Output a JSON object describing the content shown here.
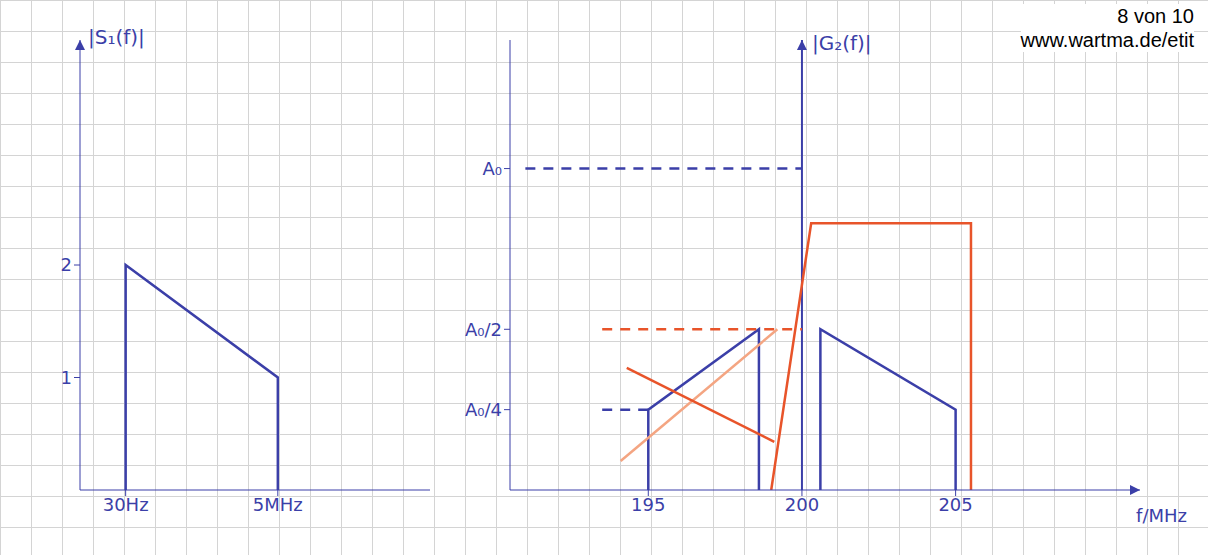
{
  "page_header": [
    "8 von 10",
    "www.wartma.de/etit"
  ],
  "chart_data": [
    {
      "type": "line",
      "y_label": "|S₁(f)|",
      "xlim": [
        -1.5,
        10
      ],
      "xticks": [
        {
          "value": 3e-05,
          "label": "30Hz"
        },
        {
          "value": 5,
          "label": "5MHz"
        }
      ],
      "ylim": [
        0,
        4
      ],
      "yticks": [
        1,
        2
      ],
      "series": [
        {
          "color": "#3b3fa8",
          "line_style": "solid",
          "x": [
            3e-05,
            3e-05,
            5,
            5
          ],
          "values": [
            0,
            2,
            1,
            0
          ]
        }
      ]
    },
    {
      "type": "line",
      "y_label": "|G₂(f)|",
      "x_label": "f/MHz",
      "y_axis_at": 200,
      "xlim": [
        190.5,
        211
      ],
      "xticks": [
        195,
        200,
        205
      ],
      "ylim": [
        0,
        1.4
      ],
      "yticks": [
        {
          "value": 0.25,
          "label": "A₀/4"
        },
        {
          "value": 0.5,
          "label": "A₀/2"
        },
        {
          "value": 1,
          "label": "A₀"
        }
      ],
      "series": [
        {
          "color": "#3b3fa8",
          "line_style": "solid",
          "x": [
            195,
            195,
            198.6,
            198.6
          ],
          "values": [
            0,
            0.25,
            0.5,
            0
          ]
        },
        {
          "color": "#3b3fa8",
          "line_style": "solid",
          "x": [
            200.6,
            200.6,
            205,
            205
          ],
          "values": [
            0,
            0.5,
            0.25,
            0
          ]
        },
        {
          "color": "#e8542a",
          "line_style": "solid",
          "x": [
            199,
            200.3,
            205.5,
            205.5
          ],
          "values": [
            0,
            0.83,
            0.83,
            0
          ]
        },
        {
          "color": "#3b3fa8",
          "line_style": "dashed",
          "x": [
            191,
            200
          ],
          "values": [
            1,
            1
          ]
        },
        {
          "color": "#e8542a",
          "line_style": "dashed",
          "x": [
            193.5,
            200
          ],
          "values": [
            0.5,
            0.5
          ]
        },
        {
          "color": "#3b3fa8",
          "line_style": "dashed",
          "x": [
            193.5,
            195
          ],
          "values": [
            0.25,
            0.25
          ]
        },
        {
          "color": "#f4a582",
          "line_style": "solid",
          "x": [
            194.1,
            199.2
          ],
          "values": [
            0.09,
            0.5
          ]
        },
        {
          "color": "#e8542a",
          "line_style": "solid",
          "x": [
            194.3,
            199.1
          ],
          "values": [
            0.38,
            0.15
          ]
        }
      ]
    }
  ]
}
